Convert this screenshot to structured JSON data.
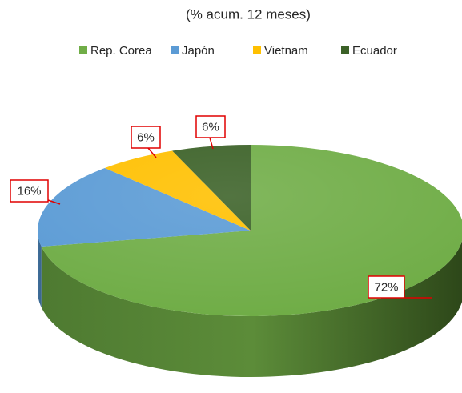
{
  "chart_data": {
    "type": "pie",
    "subtitle": "(% acum. 12 meses)",
    "categories": [
      "Rep. Corea",
      "Japón",
      "Vietnam",
      "Ecuador"
    ],
    "values": [
      72,
      16,
      6,
      6
    ],
    "value_labels": [
      "72%",
      "16%",
      "6%",
      "6%"
    ],
    "colors": [
      "#70ad47",
      "#5b9bd5",
      "#ffc000",
      "#3b6127"
    ],
    "legend": "top"
  }
}
